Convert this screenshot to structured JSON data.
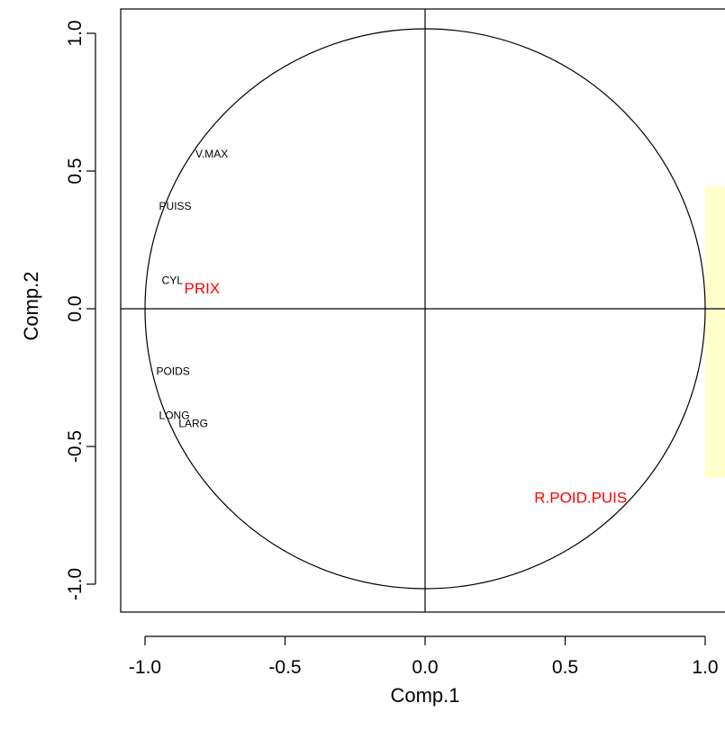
{
  "chart_data": {
    "type": "scatter",
    "title": "",
    "xlabel": "Comp.1",
    "ylabel": "Comp.2",
    "xlim": [
      -1.07,
      1.07
    ],
    "ylim": [
      -1.07,
      1.07
    ],
    "x_ticks": [
      {
        "value": -1.0,
        "label": "-1.0"
      },
      {
        "value": -0.5,
        "label": "-0.5"
      },
      {
        "value": 0.0,
        "label": "0.0"
      },
      {
        "value": 0.5,
        "label": "0.5"
      },
      {
        "value": 1.0,
        "label": "1.0"
      }
    ],
    "y_ticks": [
      {
        "value": -1.0,
        "label": "-1.0"
      },
      {
        "value": -0.5,
        "label": "-0.5"
      },
      {
        "value": 0.0,
        "label": "0.0"
      },
      {
        "value": 0.5,
        "label": "0.5"
      },
      {
        "value": 1.0,
        "label": "1.0"
      }
    ],
    "circle_radius": 1.0,
    "reference_lines": {
      "x": 0,
      "y": 0
    },
    "grid": false,
    "points": [
      {
        "label": "V.MAX",
        "x": -0.82,
        "y": 0.56,
        "color": "#000000",
        "size": "small"
      },
      {
        "label": "PUISS",
        "x": -0.95,
        "y": 0.37,
        "color": "#000000",
        "size": "small"
      },
      {
        "label": "CYL",
        "x": -0.94,
        "y": 0.1,
        "color": "#000000",
        "size": "small"
      },
      {
        "label": "PRIX",
        "x": -0.86,
        "y": 0.07,
        "color": "#ff0000",
        "size": "large"
      },
      {
        "label": "POIDS",
        "x": -0.96,
        "y": -0.23,
        "color": "#000000",
        "size": "small"
      },
      {
        "label": "LONG",
        "x": -0.95,
        "y": -0.39,
        "color": "#000000",
        "size": "small"
      },
      {
        "label": "LARG",
        "x": -0.88,
        "y": -0.42,
        "color": "#000000",
        "size": "small"
      },
      {
        "label": "R.POID.PUIS",
        "x": 0.39,
        "y": -0.69,
        "color": "#ff0000",
        "size": "large"
      }
    ]
  },
  "colors": {
    "axes": "#000000",
    "supplementary": "#ff0000",
    "note_box": "#ffffcc"
  }
}
